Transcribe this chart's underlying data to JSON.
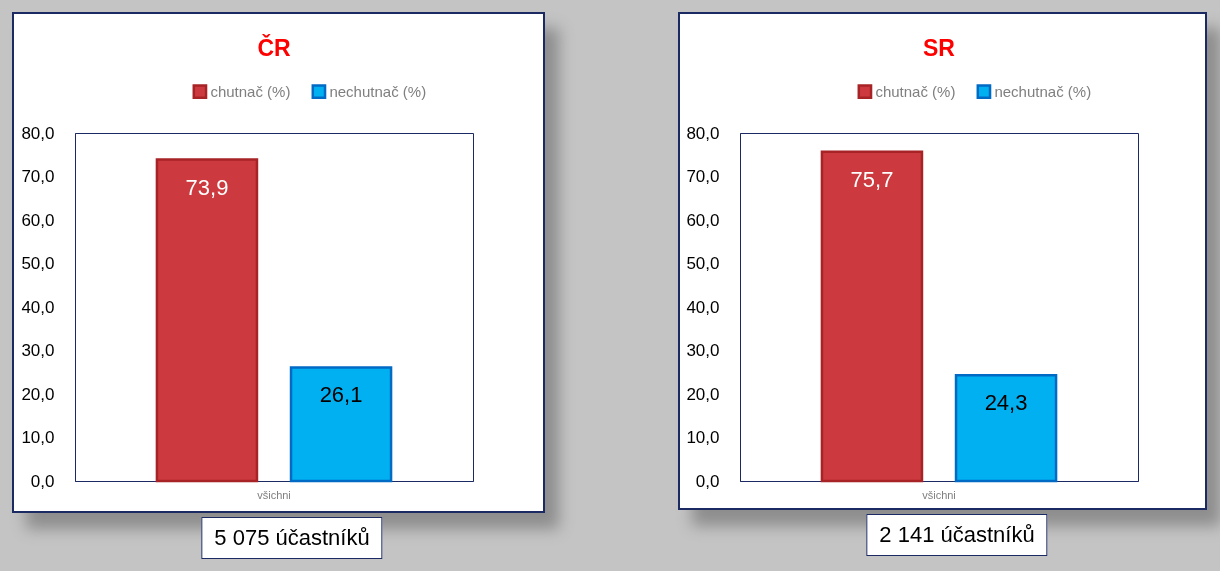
{
  "chart_data": [
    {
      "type": "bar",
      "title": "ČR",
      "categories": [
        "všichni"
      ],
      "series": [
        {
          "name": "chutnač (%)",
          "color": "#cc3a3f",
          "values": [
            73.9
          ],
          "value_labels": [
            "73,9"
          ]
        },
        {
          "name": "nechutnač (%)",
          "color": "#00b0f0",
          "values": [
            26.1
          ],
          "value_labels": [
            "26,1"
          ]
        }
      ],
      "ylim": [
        0,
        80
      ],
      "yticks": [
        {
          "value": 0,
          "label": "0,0"
        },
        {
          "value": 10,
          "label": "10,0"
        },
        {
          "value": 20,
          "label": "20,0"
        },
        {
          "value": 30,
          "label": "30,0"
        },
        {
          "value": 40,
          "label": "40,0"
        },
        {
          "value": 50,
          "label": "50,0"
        },
        {
          "value": 60,
          "label": "60,0"
        },
        {
          "value": 70,
          "label": "70,0"
        },
        {
          "value": 80,
          "label": "80,0"
        }
      ],
      "grid": false,
      "legend": "top",
      "annotations": [
        "5 075 účastníků"
      ]
    },
    {
      "type": "bar",
      "title": "SR",
      "categories": [
        "všichni"
      ],
      "series": [
        {
          "name": "chutnač (%)",
          "color": "#cc3a3f",
          "values": [
            75.7
          ],
          "value_labels": [
            "75,7"
          ]
        },
        {
          "name": "nechutnač (%)",
          "color": "#00b0f0",
          "values": [
            24.3
          ],
          "value_labels": [
            "24,3"
          ]
        }
      ],
      "ylim": [
        0,
        80
      ],
      "yticks": [
        {
          "value": 0,
          "label": "0,0"
        },
        {
          "value": 10,
          "label": "10,0"
        },
        {
          "value": 20,
          "label": "20,0"
        },
        {
          "value": 30,
          "label": "30,0"
        },
        {
          "value": 40,
          "label": "40,0"
        },
        {
          "value": 50,
          "label": "50,0"
        },
        {
          "value": 60,
          "label": "60,0"
        },
        {
          "value": 70,
          "label": "70,0"
        },
        {
          "value": 80,
          "label": "80,0"
        }
      ],
      "grid": false,
      "legend": "top",
      "annotations": [
        "2 141 účastníků"
      ]
    }
  ]
}
